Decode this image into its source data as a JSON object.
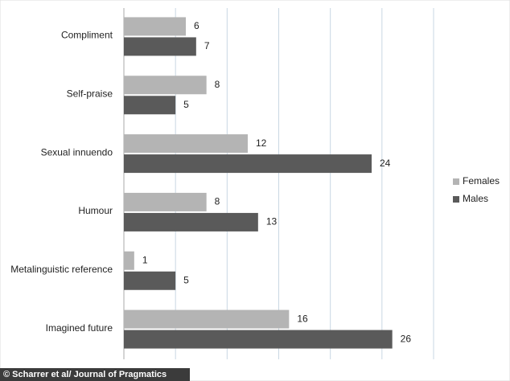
{
  "chart_data": {
    "type": "bar",
    "orientation": "horizontal",
    "categories": [
      "Compliment",
      "Self-praise",
      "Sexual innuendo",
      "Humour",
      "Metalinguistic reference",
      "Imagined future"
    ],
    "series": [
      {
        "name": "Females",
        "color": "#b4b4b4",
        "values": [
          6,
          8,
          12,
          8,
          1,
          16
        ]
      },
      {
        "name": "Males",
        "color": "#5a5a5a",
        "values": [
          7,
          5,
          24,
          13,
          5,
          26
        ]
      }
    ],
    "xlim": [
      0,
      30
    ],
    "xticks": [
      0,
      5,
      10,
      15,
      20,
      25,
      30
    ],
    "grid": true,
    "legend": "right",
    "credit": "© Scharrer et al/ Journal of Pragmatics"
  }
}
